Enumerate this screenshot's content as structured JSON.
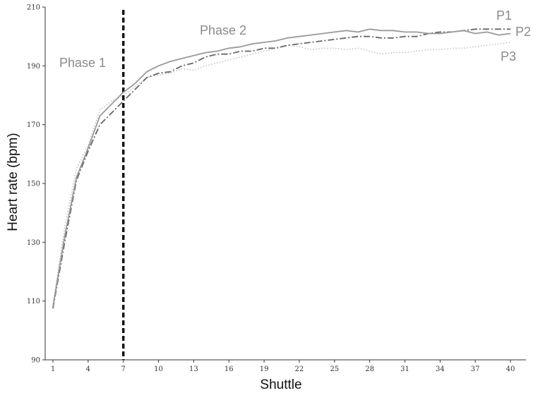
{
  "chart_data": {
    "type": "line",
    "xlabel": "Shuttle",
    "ylabel": "Heart rate (bpm)",
    "xlim": [
      1,
      40
    ],
    "ylim": [
      90,
      210
    ],
    "x_ticks": [
      1,
      4,
      7,
      10,
      13,
      16,
      19,
      22,
      25,
      28,
      31,
      34,
      37,
      40
    ],
    "y_ticks": [
      90,
      110,
      130,
      150,
      170,
      190,
      210
    ],
    "grid": false,
    "legend": "inline-right",
    "annotations": [
      {
        "text": "Phase 1",
        "kind": "region"
      },
      {
        "text": "Phase 2",
        "kind": "region"
      },
      {
        "text": "",
        "kind": "vline",
        "x": 7
      }
    ],
    "x": [
      1,
      2,
      3,
      4,
      5,
      6,
      7,
      8,
      9,
      10,
      11,
      12,
      13,
      14,
      15,
      16,
      17,
      18,
      19,
      20,
      21,
      22,
      23,
      24,
      25,
      26,
      27,
      28,
      29,
      30,
      31,
      32,
      33,
      34,
      35,
      36,
      37,
      38,
      39,
      40
    ],
    "series": [
      {
        "name": "P1",
        "color": "#666666",
        "style": "dashdot",
        "values": [
          107.5,
          130,
          151,
          161,
          170,
          174,
          178,
          182,
          186,
          187.5,
          188,
          190,
          191,
          193,
          194,
          194,
          195,
          195,
          196,
          196,
          197,
          197.5,
          198,
          198.5,
          199,
          199.5,
          200,
          200,
          199.5,
          199.5,
          200,
          200,
          201,
          201.5,
          201.5,
          202,
          202.5,
          202.5,
          202.5,
          202.5
        ]
      },
      {
        "name": "P2",
        "color": "#999999",
        "style": "solid",
        "values": [
          108,
          132,
          152,
          162,
          173,
          177,
          181,
          184,
          188,
          190,
          191.5,
          192.5,
          193.5,
          194.5,
          195,
          196,
          196.5,
          197.5,
          198,
          198.5,
          199.5,
          200,
          200.5,
          201,
          201.5,
          202,
          201.5,
          202.5,
          202,
          202,
          201.5,
          201.5,
          201,
          201,
          201.5,
          202,
          201,
          201.5,
          200.5,
          201
        ]
      },
      {
        "name": "P3",
        "color": "#bbbbbb",
        "style": "dotted",
        "values": [
          109,
          135,
          155,
          163,
          175,
          178,
          180,
          183,
          186,
          187,
          187.5,
          189,
          188.5,
          190,
          191,
          192,
          193,
          194,
          195,
          196,
          197,
          196.5,
          195.5,
          196,
          196,
          195.5,
          196,
          195,
          194,
          194.5,
          194.5,
          195,
          195.5,
          195.5,
          196,
          196,
          196.5,
          197,
          197.5,
          198
        ]
      }
    ]
  }
}
